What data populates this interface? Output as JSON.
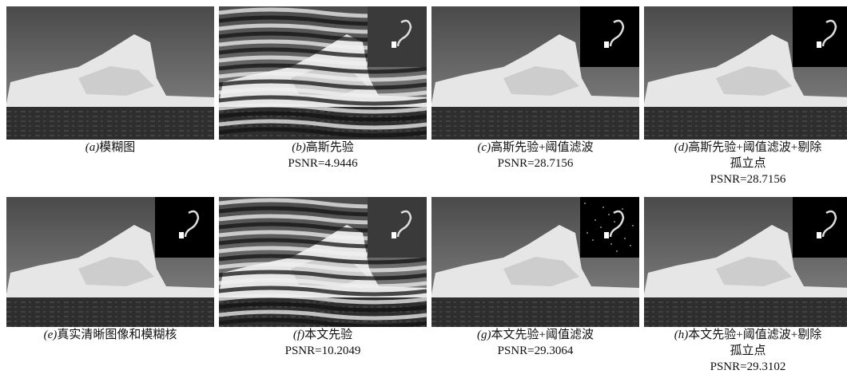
{
  "panels": [
    {
      "label": "(a)",
      "caption": [
        "模糊图"
      ]
    },
    {
      "label": "(b)",
      "caption": [
        "高斯先验"
      ],
      "psnr": "PSNR=4.9446"
    },
    {
      "label": "(c)",
      "caption": [
        "高斯先验+阈值滤波"
      ],
      "psnr": "PSNR=28.7156"
    },
    {
      "label": "(d)",
      "caption": [
        "高斯先验+阈值滤波+剔除",
        "孤立点"
      ],
      "psnr": "PSNR=28.7156"
    },
    {
      "label": "(e)",
      "caption": [
        "真实清晰图像和模糊核"
      ]
    },
    {
      "label": "(f)",
      "caption": [
        "本文先验"
      ],
      "psnr": "PSNR=10.2049"
    },
    {
      "label": "(g)",
      "caption": [
        "本文先验+阈值滤波"
      ],
      "psnr": "PSNR=29.3064"
    },
    {
      "label": "(h)",
      "caption": [
        "本文先验+阈值滤波+剔除",
        "孤立点"
      ],
      "psnr": "PSNR=29.3102"
    }
  ]
}
